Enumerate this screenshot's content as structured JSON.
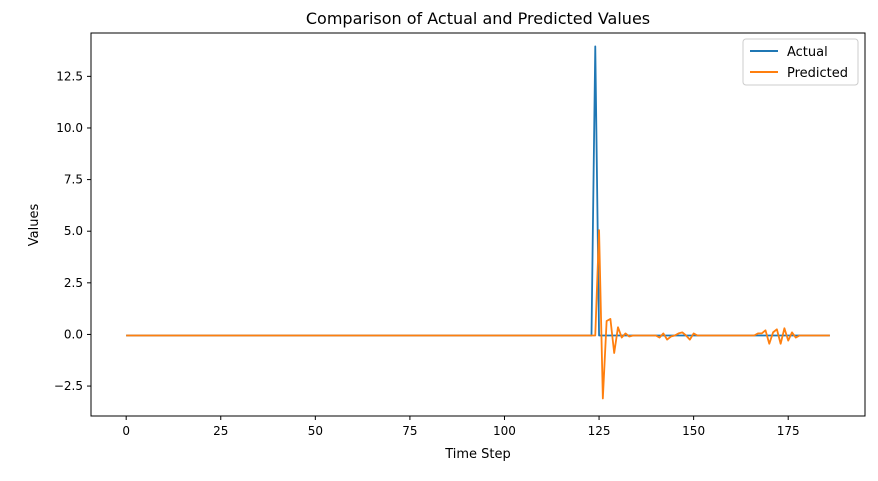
{
  "chart_data": {
    "type": "line",
    "title": "Comparison of Actual and Predicted Values",
    "xlabel": "Time Step",
    "ylabel": "Values",
    "xlim": [
      -9.3,
      195.3
    ],
    "ylim": [
      -3.95,
      14.6
    ],
    "xticks": [
      0,
      25,
      50,
      75,
      100,
      125,
      150,
      175
    ],
    "xtick_labels": [
      "0",
      "25",
      "50",
      "75",
      "100",
      "125",
      "150",
      "175"
    ],
    "yticks": [
      -2.5,
      0.0,
      2.5,
      5.0,
      7.5,
      10.0,
      12.5
    ],
    "ytick_labels": [
      "−2.5",
      "0.0",
      "2.5",
      "5.0",
      "7.5",
      "10.0",
      "12.5"
    ],
    "grid": false,
    "legend_position": "top-right",
    "series": [
      {
        "name": "Actual",
        "color": "#1f77b4",
        "points": [
          [
            0,
            -0.05
          ],
          [
            122,
            -0.05
          ],
          [
            123,
            -0.05
          ],
          [
            124,
            13.95
          ],
          [
            125,
            -0.05
          ],
          [
            126,
            -0.05
          ],
          [
            186,
            -0.05
          ]
        ]
      },
      {
        "name": "Predicted",
        "color": "#ff7f0e",
        "points": [
          [
            0,
            -0.05
          ],
          [
            123,
            -0.05
          ],
          [
            124,
            -0.05
          ],
          [
            125,
            5.05
          ],
          [
            126,
            -3.1
          ],
          [
            127,
            0.65
          ],
          [
            128,
            0.75
          ],
          [
            129,
            -0.9
          ],
          [
            130,
            0.35
          ],
          [
            131,
            -0.15
          ],
          [
            132,
            0.05
          ],
          [
            133,
            -0.1
          ],
          [
            134,
            -0.05
          ],
          [
            140,
            -0.05
          ],
          [
            141,
            -0.15
          ],
          [
            142,
            0.05
          ],
          [
            143,
            -0.25
          ],
          [
            144,
            -0.1
          ],
          [
            145,
            -0.05
          ],
          [
            146,
            0.05
          ],
          [
            147,
            0.1
          ],
          [
            148,
            -0.05
          ],
          [
            149,
            -0.25
          ],
          [
            150,
            0.05
          ],
          [
            151,
            -0.05
          ],
          [
            166,
            -0.05
          ],
          [
            167,
            0.05
          ],
          [
            168,
            0.05
          ],
          [
            169,
            0.2
          ],
          [
            170,
            -0.45
          ],
          [
            171,
            0.1
          ],
          [
            172,
            0.25
          ],
          [
            173,
            -0.45
          ],
          [
            174,
            0.3
          ],
          [
            175,
            -0.3
          ],
          [
            176,
            0.1
          ],
          [
            177,
            -0.15
          ],
          [
            178,
            -0.05
          ],
          [
            186,
            -0.05
          ]
        ]
      }
    ]
  }
}
